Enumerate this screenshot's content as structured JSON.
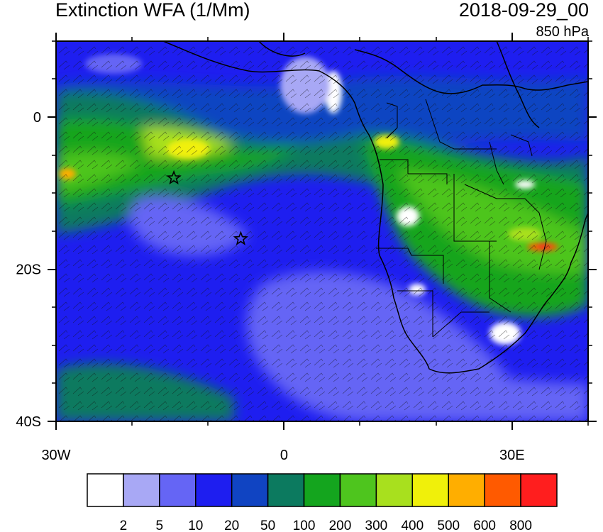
{
  "map": {
    "title_left": "Extinction WFA (1/Mm)",
    "title_right": "2018-09-29_00",
    "level": "850 hPa",
    "lat_ticks": [
      {
        "label": "0",
        "value": 0
      },
      {
        "label": "20S",
        "value": -20
      },
      {
        "label": "40S",
        "value": -40
      }
    ],
    "lon_ticks": [
      {
        "label": "30W",
        "value": -30
      },
      {
        "label": "0",
        "value": 0
      },
      {
        "label": "30E",
        "value": 30
      }
    ],
    "markers": [
      {
        "name": "star-marker-1",
        "symbol": "star",
        "lon": -14.5,
        "lat": -8
      },
      {
        "name": "star-marker-2",
        "symbol": "star",
        "lon": -5.7,
        "lat": -16
      }
    ]
  },
  "colorbar": {
    "colors": [
      "#ffffff",
      "#a8a8f5",
      "#6565f5",
      "#1e1ef0",
      "#1044c2",
      "#0c7a5f",
      "#14a51e",
      "#4ec51e",
      "#a8e01e",
      "#f0f00a",
      "#ffae00",
      "#ff5a00",
      "#ff1e1e"
    ],
    "labels": [
      "2",
      "5",
      "10",
      "20",
      "50",
      "100",
      "200",
      "300",
      "400",
      "500",
      "600",
      "800"
    ]
  }
}
